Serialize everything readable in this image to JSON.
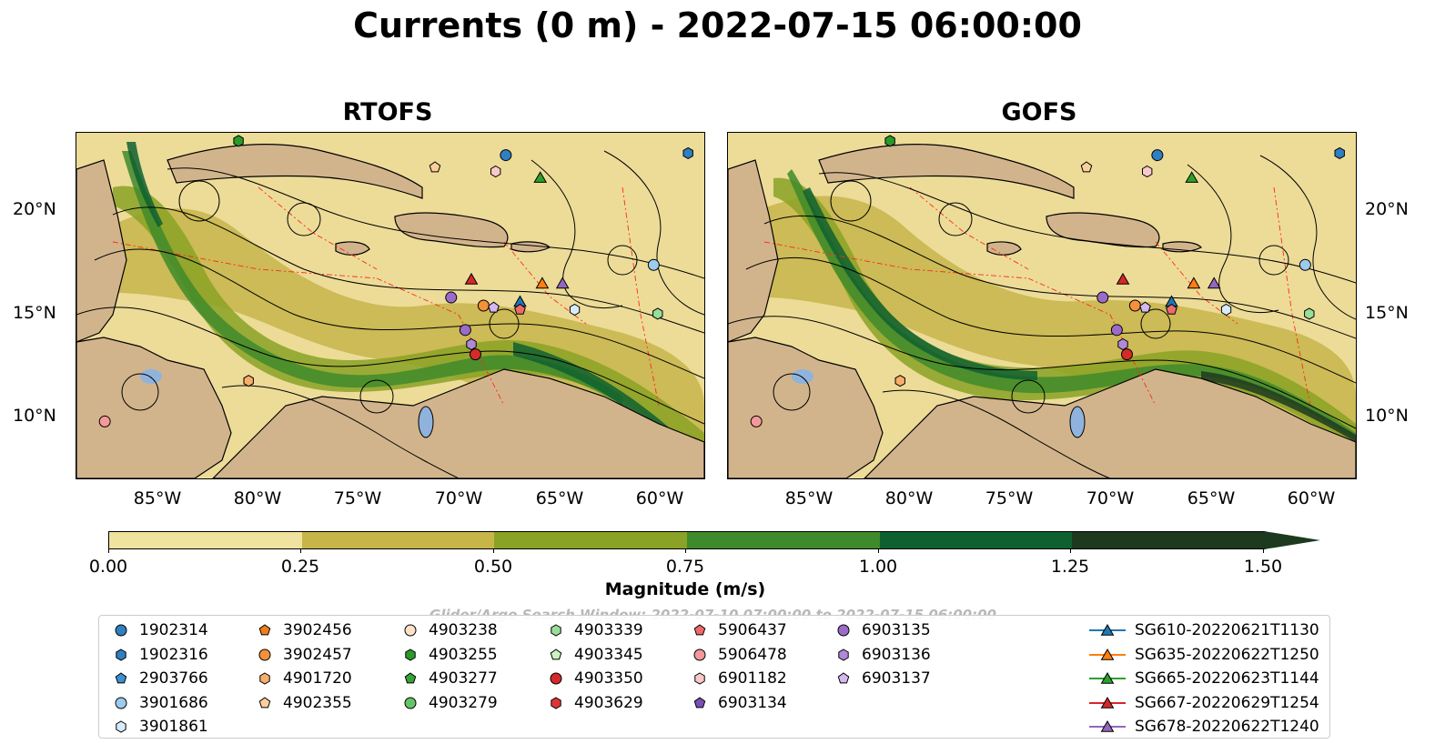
{
  "title": "Currents (0 m) - 2022-07-15 06:00:00",
  "panels": [
    {
      "name": "RTOFS"
    },
    {
      "name": "GOFS"
    }
  ],
  "lat_ticks": [
    "20°N",
    "15°N",
    "10°N"
  ],
  "lon_ticks": [
    "85°W",
    "80°W",
    "75°W",
    "70°W",
    "65°W",
    "60°W"
  ],
  "colorbar": {
    "label": "Magnitude (m/s)",
    "ticks": [
      "0.00",
      "0.25",
      "0.50",
      "0.75",
      "1.00",
      "1.25",
      "1.50"
    ],
    "colors": [
      "#efe39f",
      "#c7b54a",
      "#8aa225",
      "#3f8a2a",
      "#0f6030",
      "#1d3a1e"
    ]
  },
  "search_window": "Glider/Argo Search Window: 2022-07-10 07:00:00 to 2022-07-15 06:00:00",
  "legend": [
    {
      "label": "1902314",
      "marker": "circle",
      "color": "#2f7fc1"
    },
    {
      "label": "1902316",
      "marker": "hexagon",
      "color": "#2f7fc1"
    },
    {
      "label": "2903766",
      "marker": "pentagon",
      "color": "#3d8fd1"
    },
    {
      "label": "3901686",
      "marker": "circle",
      "color": "#9ccbee"
    },
    {
      "label": "3901861",
      "marker": "hexagon",
      "color": "#d6ecfa"
    },
    {
      "label": "3902456",
      "marker": "pentagon",
      "color": "#f07f1a"
    },
    {
      "label": "3902457",
      "marker": "circle",
      "color": "#f5913a"
    },
    {
      "label": "4901720",
      "marker": "hexagon",
      "color": "#f7ae6a"
    },
    {
      "label": "4902355",
      "marker": "pentagon",
      "color": "#fbcf9c"
    },
    {
      "label": "4903238",
      "marker": "circle",
      "color": "#fde2c8"
    },
    {
      "label": "4903255",
      "marker": "hexagon",
      "color": "#2a9a2a"
    },
    {
      "label": "4903277",
      "marker": "pentagon",
      "color": "#36a336"
    },
    {
      "label": "4903279",
      "marker": "circle",
      "color": "#66c466"
    },
    {
      "label": "4903339",
      "marker": "hexagon",
      "color": "#98de98"
    },
    {
      "label": "4903345",
      "marker": "pentagon",
      "color": "#c9f3c0"
    },
    {
      "label": "4903350",
      "marker": "circle",
      "color": "#d42a2a"
    },
    {
      "label": "4903629",
      "marker": "hexagon",
      "color": "#e03535"
    },
    {
      "label": "5906437",
      "marker": "pentagon",
      "color": "#ee6a6a"
    },
    {
      "label": "5906478",
      "marker": "circle",
      "color": "#f3999a"
    },
    {
      "label": "6901182",
      "marker": "hexagon",
      "color": "#f9c9c9"
    },
    {
      "label": "6903134",
      "marker": "pentagon",
      "color": "#7b4fb3"
    },
    {
      "label": "6903135",
      "marker": "circle",
      "color": "#9b6bc9"
    },
    {
      "label": "6903136",
      "marker": "hexagon",
      "color": "#b088d8"
    },
    {
      "label": "6903137",
      "marker": "pentagon",
      "color": "#d4b8ef"
    },
    {
      "label": "SG610-20220621T1130",
      "marker": "triangle-line",
      "color": "#1f77b4"
    },
    {
      "label": "SG635-20220622T1250",
      "marker": "triangle-line",
      "color": "#ff7f0e"
    },
    {
      "label": "SG665-20220623T1144",
      "marker": "triangle-line",
      "color": "#2ca02c"
    },
    {
      "label": "SG667-20220629T1254",
      "marker": "triangle-line",
      "color": "#d62728"
    },
    {
      "label": "SG678-20220622T1240",
      "marker": "triangle-line",
      "color": "#9467bd"
    }
  ],
  "markers_rtofs": [
    {
      "id": "1902314",
      "lon": -67.8,
      "lat": 22.9
    },
    {
      "id": "1902316",
      "lon": -58.8,
      "lat": 23.0
    },
    {
      "id": "4903255",
      "lon": -81.0,
      "lat": 23.6
    },
    {
      "id": "4902355",
      "lon": -71.3,
      "lat": 22.3
    },
    {
      "id": "6901182",
      "lon": -68.3,
      "lat": 22.1
    },
    {
      "id": "SG665-20220623T1144",
      "lon": -66.1,
      "lat": 21.8
    },
    {
      "id": "3901686",
      "lon": -60.5,
      "lat": 17.5
    },
    {
      "id": "SG667-20220629T1254",
      "lon": -69.5,
      "lat": 16.8
    },
    {
      "id": "SG635-20220622T1250",
      "lon": -66.0,
      "lat": 16.6
    },
    {
      "id": "SG678-20220622T1240",
      "lon": -65.0,
      "lat": 16.6
    },
    {
      "id": "6903135",
      "lon": -70.5,
      "lat": 15.9
    },
    {
      "id": "SG610-20220621T1130",
      "lon": -67.1,
      "lat": 15.7
    },
    {
      "id": "3902457",
      "lon": -68.9,
      "lat": 15.5
    },
    {
      "id": "6903137",
      "lon": -68.4,
      "lat": 15.4
    },
    {
      "id": "5906437",
      "lon": -67.1,
      "lat": 15.3
    },
    {
      "id": "3901861",
      "lon": -64.4,
      "lat": 15.3
    },
    {
      "id": "4903339",
      "lon": -60.3,
      "lat": 15.1
    },
    {
      "id": "6903135",
      "lon": -69.8,
      "lat": 14.3
    },
    {
      "id": "6903136",
      "lon": -69.5,
      "lat": 13.6
    },
    {
      "id": "4903350",
      "lon": -69.3,
      "lat": 13.1
    },
    {
      "id": "4901720",
      "lon": -80.5,
      "lat": 11.8
    },
    {
      "id": "5906478",
      "lon": -87.6,
      "lat": 9.8
    }
  ],
  "markers_gofs": [
    {
      "id": "1902314",
      "lon": -67.8,
      "lat": 22.9
    },
    {
      "id": "1902316",
      "lon": -58.8,
      "lat": 23.0
    },
    {
      "id": "4903255",
      "lon": -81.0,
      "lat": 23.6
    },
    {
      "id": "4902355",
      "lon": -71.3,
      "lat": 22.3
    },
    {
      "id": "6901182",
      "lon": -68.3,
      "lat": 22.1
    },
    {
      "id": "SG665-20220623T1144",
      "lon": -66.1,
      "lat": 21.8
    },
    {
      "id": "3901686",
      "lon": -60.5,
      "lat": 17.5
    },
    {
      "id": "SG667-20220629T1254",
      "lon": -69.5,
      "lat": 16.8
    },
    {
      "id": "SG635-20220622T1250",
      "lon": -66.0,
      "lat": 16.6
    },
    {
      "id": "SG678-20220622T1240",
      "lon": -65.0,
      "lat": 16.6
    },
    {
      "id": "6903135",
      "lon": -70.5,
      "lat": 15.9
    },
    {
      "id": "SG610-20220621T1130",
      "lon": -67.1,
      "lat": 15.7
    },
    {
      "id": "3902457",
      "lon": -68.9,
      "lat": 15.5
    },
    {
      "id": "6903137",
      "lon": -68.4,
      "lat": 15.4
    },
    {
      "id": "5906437",
      "lon": -67.1,
      "lat": 15.3
    },
    {
      "id": "3901861",
      "lon": -64.4,
      "lat": 15.3
    },
    {
      "id": "4903339",
      "lon": -60.3,
      "lat": 15.1
    },
    {
      "id": "6903135",
      "lon": -69.8,
      "lat": 14.3
    },
    {
      "id": "6903136",
      "lon": -69.5,
      "lat": 13.6
    },
    {
      "id": "4903350",
      "lon": -69.3,
      "lat": 13.1
    },
    {
      "id": "4901720",
      "lon": -80.5,
      "lat": 11.8
    },
    {
      "id": "5906478",
      "lon": -87.6,
      "lat": 9.8
    }
  ]
}
